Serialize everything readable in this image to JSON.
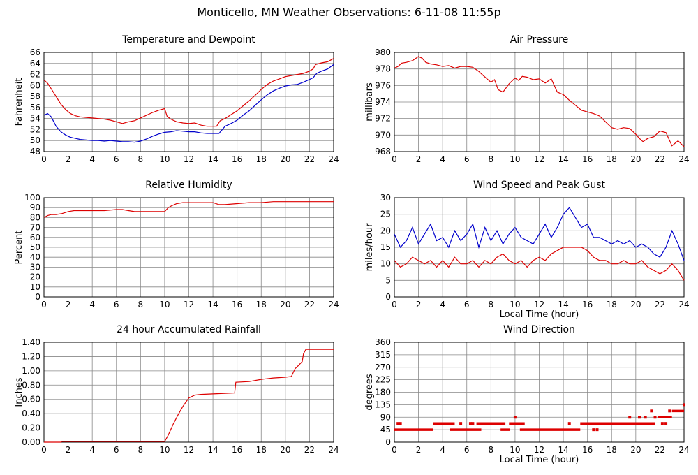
{
  "page": {
    "title": "Monticello, MN Weather Observations: 6-11-08 11:55p"
  },
  "chart_data": [
    {
      "id": "temp",
      "type": "line",
      "title": "Temperature and Dewpoint",
      "xlabel": "",
      "ylabel": "Fahrenheit",
      "xlim": [
        0,
        24
      ],
      "ylim": [
        48,
        66
      ],
      "xticks": [
        "0",
        "2",
        "4",
        "6",
        "8",
        "10",
        "12",
        "14",
        "16",
        "18",
        "20",
        "22",
        "24"
      ],
      "yticks": [
        "48",
        "50",
        "52",
        "54",
        "56",
        "58",
        "60",
        "62",
        "64",
        "66"
      ],
      "grid": true,
      "series": [
        {
          "color": "#dd0000",
          "x": [
            0,
            0.3,
            0.6,
            1,
            1.4,
            1.8,
            2.2,
            2.6,
            3,
            3.5,
            4,
            4.5,
            5,
            5.5,
            6,
            6.5,
            7,
            7.5,
            8,
            8.5,
            9,
            9.5,
            10,
            10.2,
            10.5,
            11,
            11.5,
            12,
            12.5,
            13,
            13.5,
            14,
            14.3,
            14.6,
            15,
            15.5,
            16,
            16.5,
            17,
            17.5,
            18,
            18.5,
            19,
            19.5,
            20,
            20.5,
            21,
            21.5,
            22,
            22.3,
            22.5,
            23,
            23.5,
            24
          ],
          "y": [
            61,
            60.4,
            59.4,
            58,
            56.6,
            55.6,
            54.9,
            54.5,
            54.3,
            54.2,
            54.1,
            54,
            53.9,
            53.7,
            53.4,
            53.1,
            53.4,
            53.6,
            54.1,
            54.6,
            55.1,
            55.5,
            55.8,
            54.4,
            53.9,
            53.4,
            53.2,
            53.1,
            53.2,
            52.8,
            52.6,
            52.6,
            52.6,
            53.6,
            54,
            54.7,
            55.4,
            56.3,
            57.2,
            58.2,
            59.3,
            60.2,
            60.8,
            61.2,
            61.6,
            61.8,
            62,
            62.2,
            62.6,
            63,
            63.8,
            64.1,
            64.3,
            64.9
          ]
        },
        {
          "color": "#0000cc",
          "x": [
            0,
            0.3,
            0.6,
            1,
            1.4,
            1.8,
            2.2,
            2.6,
            3,
            3.5,
            4,
            4.5,
            5,
            5.5,
            6,
            6.5,
            7,
            7.5,
            8,
            8.5,
            9,
            9.5,
            10,
            10.5,
            11,
            11.5,
            12,
            12.5,
            13,
            13.5,
            14,
            14.5,
            15,
            15.5,
            16,
            16.5,
            17,
            17.5,
            18,
            18.5,
            19,
            19.5,
            20,
            20.5,
            21,
            21.5,
            22,
            22.3,
            22.6,
            23,
            23.5,
            24
          ],
          "y": [
            54.6,
            54.9,
            54.3,
            52.6,
            51.6,
            51,
            50.6,
            50.4,
            50.2,
            50.1,
            50,
            50,
            49.9,
            50,
            49.9,
            49.8,
            49.8,
            49.7,
            49.9,
            50.3,
            50.8,
            51.2,
            51.5,
            51.6,
            51.8,
            51.7,
            51.6,
            51.6,
            51.4,
            51.3,
            51.3,
            51.3,
            52.6,
            53.1,
            53.7,
            54.6,
            55.4,
            56.4,
            57.4,
            58.3,
            59,
            59.5,
            59.9,
            60.1,
            60.2,
            60.6,
            61.1,
            61.4,
            62.2,
            62.6,
            63,
            63.8
          ]
        }
      ]
    },
    {
      "id": "pressure",
      "type": "line",
      "title": "Air Pressure",
      "xlabel": "",
      "ylabel": "millibars",
      "xlim": [
        0,
        24
      ],
      "ylim": [
        968,
        980
      ],
      "xticks": [
        "0",
        "2",
        "4",
        "6",
        "8",
        "10",
        "12",
        "14",
        "16",
        "18",
        "20",
        "22",
        "24"
      ],
      "yticks": [
        "968",
        "970",
        "972",
        "974",
        "976",
        "978",
        "980"
      ],
      "grid": true,
      "series": [
        {
          "color": "#dd0000",
          "x": [
            0,
            0.3,
            0.6,
            1,
            1.5,
            2,
            2.3,
            2.6,
            3,
            3.5,
            4,
            4.5,
            5,
            5.5,
            6,
            6.5,
            7,
            7.3,
            7.6,
            8,
            8.3,
            8.6,
            9,
            9.5,
            10,
            10.3,
            10.6,
            11,
            11.5,
            12,
            12.5,
            13,
            13.5,
            14,
            14.5,
            15,
            15.5,
            16,
            16.5,
            17,
            17.5,
            18,
            18.5,
            19,
            19.5,
            20,
            20.3,
            20.6,
            21,
            21.5,
            22,
            22.5,
            23,
            23.5,
            24
          ],
          "y": [
            978.1,
            978.3,
            978.7,
            978.8,
            979,
            979.5,
            979.3,
            978.8,
            978.6,
            978.5,
            978.3,
            978.4,
            978.1,
            978.3,
            978.3,
            978.2,
            977.7,
            977.3,
            976.9,
            976.4,
            976.7,
            975.5,
            975.2,
            976.2,
            976.9,
            976.6,
            977.1,
            977,
            976.7,
            976.8,
            976.3,
            976.8,
            975.2,
            974.9,
            974.2,
            973.6,
            973,
            972.8,
            972.6,
            972.3,
            971.6,
            970.9,
            970.7,
            970.9,
            970.8,
            970.1,
            969.6,
            969.2,
            969.6,
            969.8,
            970.5,
            970.3,
            968.7,
            969.3,
            968.6
          ]
        }
      ]
    },
    {
      "id": "humidity",
      "type": "line",
      "title": "Relative Humidity",
      "xlabel": "",
      "ylabel": "Percent",
      "xlim": [
        0,
        24
      ],
      "ylim": [
        0,
        100
      ],
      "xticks": [
        "0",
        "2",
        "4",
        "6",
        "8",
        "10",
        "12",
        "14",
        "16",
        "18",
        "20",
        "22",
        "24"
      ],
      "yticks": [
        "0",
        "10",
        "20",
        "30",
        "40",
        "50",
        "60",
        "70",
        "80",
        "90",
        "100"
      ],
      "grid": true,
      "series": [
        {
          "color": "#dd0000",
          "x": [
            0,
            0.3,
            0.6,
            1,
            1.5,
            2,
            2.5,
            3,
            4,
            5,
            6,
            6.5,
            7,
            7.5,
            8,
            9,
            10,
            10.3,
            10.6,
            11,
            11.5,
            12,
            13,
            14,
            14.5,
            15,
            16,
            17,
            18,
            19,
            20,
            21,
            22,
            23,
            24
          ],
          "y": [
            80,
            82,
            83,
            83,
            84,
            86,
            87,
            87,
            87,
            87,
            88,
            88,
            87,
            86,
            86,
            86,
            86,
            90,
            92,
            94,
            95,
            95,
            95,
            95,
            93,
            93,
            94,
            95,
            95,
            96,
            96,
            96,
            96,
            96,
            96
          ]
        }
      ]
    },
    {
      "id": "wind",
      "type": "line",
      "title": "Wind Speed and Peak Gust",
      "xlabel": "Local Time (hour)",
      "ylabel": "miles/hour",
      "xlim": [
        0,
        24
      ],
      "ylim": [
        0,
        30
      ],
      "xticks": [
        "0",
        "2",
        "4",
        "6",
        "8",
        "10",
        "12",
        "14",
        "16",
        "18",
        "20",
        "22",
        "24"
      ],
      "yticks": [
        "0",
        "5",
        "10",
        "15",
        "20",
        "25",
        "30"
      ],
      "grid": true,
      "series": [
        {
          "color": "#0000cc",
          "x": [
            0,
            0.5,
            1,
            1.5,
            2,
            2.5,
            3,
            3.5,
            4,
            4.5,
            5,
            5.5,
            6,
            6.5,
            7,
            7.5,
            8,
            8.5,
            9,
            9.5,
            10,
            10.5,
            11,
            11.5,
            12,
            12.5,
            13,
            13.5,
            14,
            14.5,
            15,
            15.5,
            16,
            16.5,
            17,
            17.5,
            18,
            18.5,
            19,
            19.5,
            20,
            20.5,
            21,
            21.5,
            22,
            22.5,
            23,
            23.5,
            24
          ],
          "y": [
            19,
            15,
            17,
            21,
            16,
            19,
            22,
            17,
            18,
            15,
            20,
            17,
            19,
            22,
            15,
            21,
            17,
            20,
            16,
            19,
            21,
            18,
            17,
            16,
            19,
            22,
            18,
            21,
            25,
            27,
            24,
            21,
            22,
            18,
            18,
            17,
            16,
            17,
            16,
            17,
            15,
            16,
            15,
            13,
            12,
            15,
            20,
            16,
            11
          ]
        },
        {
          "color": "#dd0000",
          "x": [
            0,
            0.5,
            1,
            1.5,
            2,
            2.5,
            3,
            3.5,
            4,
            4.5,
            5,
            5.5,
            6,
            6.5,
            7,
            7.5,
            8,
            8.5,
            9,
            9.5,
            10,
            10.5,
            11,
            11.5,
            12,
            12.5,
            13,
            13.5,
            14,
            14.5,
            15,
            15.5,
            16,
            16.5,
            17,
            17.5,
            18,
            18.5,
            19,
            19.5,
            20,
            20.5,
            21,
            21.5,
            22,
            22.5,
            23,
            23.5,
            24
          ],
          "y": [
            11,
            9,
            10,
            12,
            11,
            10,
            11,
            9,
            11,
            9,
            12,
            10,
            10,
            11,
            9,
            11,
            10,
            12,
            13,
            11,
            10,
            11,
            9,
            11,
            12,
            11,
            13,
            14,
            15,
            15,
            15,
            15,
            14,
            12,
            11,
            11,
            10,
            10,
            11,
            10,
            10,
            11,
            9,
            8,
            7,
            8,
            10,
            8,
            5
          ]
        }
      ]
    },
    {
      "id": "rain",
      "type": "line",
      "title": "24 hour Accumulated Rainfall",
      "xlabel": "",
      "ylabel": "Inches",
      "xlim": [
        0,
        24
      ],
      "ylim": [
        0,
        1.4
      ],
      "xticks": [
        "0",
        "2",
        "4",
        "6",
        "8",
        "10",
        "12",
        "14",
        "16",
        "18",
        "20",
        "22",
        "24"
      ],
      "yticks": [
        "0.00",
        "0.20",
        "0.40",
        "0.60",
        "0.80",
        "1.00",
        "1.20",
        "1.40"
      ],
      "grid": true,
      "series": [
        {
          "color": "#dd0000",
          "x": [
            0,
            1.4,
            1.5,
            10,
            10.3,
            10.7,
            11.1,
            11.5,
            12,
            12.5,
            13,
            15.8,
            15.9,
            17,
            18,
            19,
            20,
            20.5,
            20.8,
            21,
            21.4,
            21.5,
            21.7,
            24
          ],
          "y": [
            0,
            0,
            0.01,
            0.01,
            0.1,
            0.25,
            0.38,
            0.5,
            0.62,
            0.66,
            0.67,
            0.69,
            0.84,
            0.85,
            0.88,
            0.9,
            0.91,
            0.92,
            1.03,
            1.06,
            1.13,
            1.24,
            1.3,
            1.3
          ]
        }
      ]
    },
    {
      "id": "winddir",
      "type": "scatter",
      "title": "Wind Direction",
      "xlabel": "Local Time (hour)",
      "ylabel": "degrees",
      "xlim": [
        0,
        24
      ],
      "ylim": [
        0,
        360
      ],
      "xticks": [
        "0",
        "2",
        "4",
        "6",
        "8",
        "10",
        "12",
        "14",
        "16",
        "18",
        "20",
        "22",
        "24"
      ],
      "yticks": [
        "0",
        "45",
        "90",
        "135",
        "180",
        "225",
        "270",
        "315",
        "360"
      ],
      "grid": true,
      "segments": [
        {
          "x0": 0,
          "x1": 3.2,
          "y": 45
        },
        {
          "x0": 3.2,
          "x1": 5.0,
          "y": 67.5
        },
        {
          "x0": 4.6,
          "x1": 7.2,
          "y": 45
        },
        {
          "x0": 6.8,
          "x1": 9.2,
          "y": 67.5
        },
        {
          "x0": 8.8,
          "x1": 9.6,
          "y": 45
        },
        {
          "x0": 9.5,
          "x1": 10.8,
          "y": 67.5
        },
        {
          "x0": 10.4,
          "x1": 15.4,
          "y": 45
        },
        {
          "x0": 15.4,
          "x1": 21.6,
          "y": 67.5
        },
        {
          "x0": 21.8,
          "x1": 23.0,
          "y": 90
        },
        {
          "x0": 23.0,
          "x1": 24.0,
          "y": 112.5
        }
      ],
      "points": [
        [
          0.3,
          67.5
        ],
        [
          0.5,
          67.5
        ],
        [
          5.5,
          67.5
        ],
        [
          6.3,
          67.5
        ],
        [
          6.5,
          67.5
        ],
        [
          10,
          90
        ],
        [
          14.5,
          67.5
        ],
        [
          16.5,
          45
        ],
        [
          16.8,
          45
        ],
        [
          19.5,
          90
        ],
        [
          20.3,
          90
        ],
        [
          20.8,
          90
        ],
        [
          21.3,
          112.5
        ],
        [
          21.6,
          90
        ],
        [
          22.2,
          67.5
        ],
        [
          22.5,
          67.5
        ],
        [
          22.8,
          112.5
        ],
        [
          24,
          135
        ]
      ]
    }
  ]
}
